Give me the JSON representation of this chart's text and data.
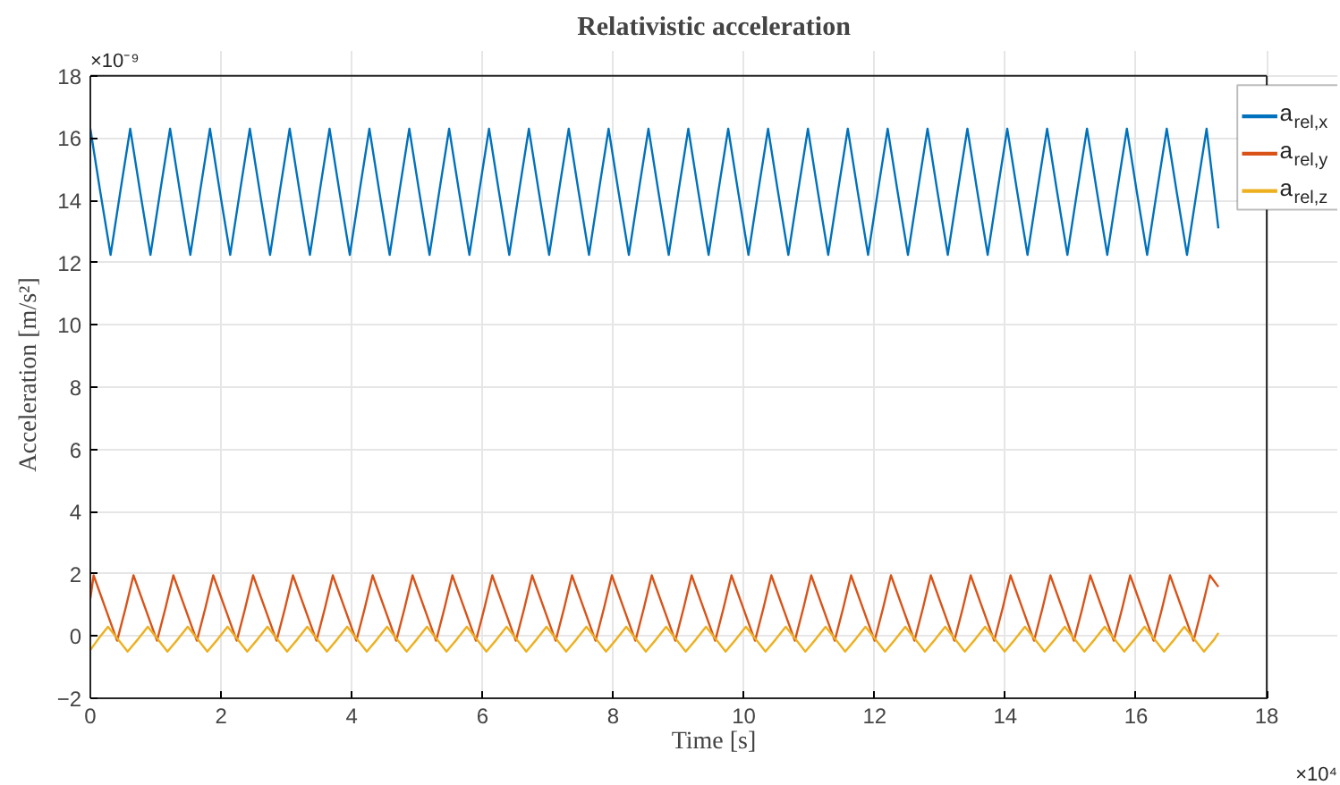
{
  "chart_data": {
    "type": "line",
    "title": "Relativistic acceleration",
    "xlabel": "Time [s]",
    "ylabel": "Acceleration [m/s²]",
    "annotations": [
      "×10⁻⁹",
      "×10⁴"
    ],
    "xlim": [
      0,
      18
    ],
    "xticks": [
      0,
      2,
      4,
      6,
      8,
      10,
      12,
      14,
      16,
      18
    ],
    "ylim": [
      -2,
      18
    ],
    "yticks": [
      -2,
      0,
      2,
      4,
      6,
      8,
      10,
      12,
      14,
      16,
      18
    ],
    "grid": true,
    "legend": "top right",
    "marker": "none",
    "line_style": "solid",
    "series": [
      {
        "name": "a$_{rel,x}$",
        "color": "#0072bd",
        "x": [
          0,
          0.15,
          0.31,
          0.46,
          0.61,
          0.76,
          0.92,
          1.07,
          1.22,
          1.37,
          1.53,
          1.68,
          1.83,
          1.98,
          2.14,
          2.29,
          2.44,
          2.59,
          2.75,
          2.9,
          3.05,
          3.2,
          3.36,
          3.51,
          3.66,
          3.81,
          3.97,
          4.12,
          4.27,
          4.42,
          4.58,
          4.73,
          4.88,
          5.03,
          5.19,
          5.34,
          5.49,
          5.64,
          5.8,
          5.95,
          6.1,
          6.25,
          6.41,
          6.56,
          6.71,
          6.86,
          7.02,
          7.17,
          7.32,
          7.47,
          7.63,
          7.78,
          7.93,
          8.08,
          8.24,
          8.39,
          8.54,
          8.69,
          8.85,
          9.0,
          9.15,
          9.3,
          9.46,
          9.61,
          9.76,
          9.91,
          10.07,
          10.22,
          10.37,
          10.52,
          10.68,
          10.83,
          10.98,
          11.13,
          11.29,
          11.44,
          11.59,
          11.74,
          11.9,
          12.05,
          12.2,
          12.35,
          12.51,
          12.66,
          12.81,
          12.96,
          13.12,
          13.27,
          13.42,
          13.57,
          13.73,
          13.88,
          14.03,
          14.18,
          14.34,
          14.49,
          14.64,
          14.79,
          14.95,
          15.1,
          15.25,
          15.4,
          15.56,
          15.71,
          15.86,
          16.01,
          16.17,
          16.32,
          16.47,
          16.62,
          16.78,
          16.93,
          17.08,
          17.26
        ],
        "values": [
          16.3,
          14.3,
          12.25,
          14.3,
          16.3,
          14.3,
          12.25,
          14.3,
          16.3,
          14.3,
          12.25,
          14.3,
          16.3,
          14.3,
          12.25,
          14.3,
          16.3,
          14.3,
          12.25,
          14.3,
          16.3,
          14.3,
          12.25,
          14.3,
          16.3,
          14.3,
          12.25,
          14.3,
          16.3,
          14.3,
          12.25,
          14.3,
          16.3,
          14.3,
          12.25,
          14.3,
          16.3,
          14.3,
          12.25,
          14.3,
          16.3,
          14.3,
          12.25,
          14.3,
          16.3,
          14.3,
          12.25,
          14.3,
          16.3,
          14.3,
          12.25,
          14.3,
          16.3,
          14.3,
          12.25,
          14.3,
          16.3,
          14.3,
          12.25,
          14.3,
          16.3,
          14.3,
          12.25,
          14.3,
          16.3,
          14.3,
          12.25,
          14.3,
          16.3,
          14.3,
          12.25,
          14.3,
          16.3,
          14.3,
          12.25,
          14.3,
          16.3,
          14.3,
          12.25,
          14.3,
          16.3,
          14.3,
          12.25,
          14.3,
          16.3,
          14.3,
          12.25,
          14.3,
          16.3,
          14.3,
          12.25,
          14.3,
          16.3,
          14.3,
          12.25,
          14.3,
          16.3,
          14.3,
          12.25,
          14.3,
          16.3,
          14.3,
          12.25,
          14.3,
          16.3,
          14.3,
          12.25,
          14.3,
          16.3,
          14.3,
          12.25,
          14.3,
          16.3,
          13.1
        ]
      },
      {
        "name": "a$_{rel,y}$",
        "color": "#d95319",
        "x": [
          0,
          0.05,
          0.23,
          0.41,
          0.54,
          0.66,
          0.84,
          1.02,
          1.15,
          1.27,
          1.45,
          1.63,
          1.76,
          1.88,
          2.06,
          2.24,
          2.37,
          2.49,
          2.67,
          2.85,
          2.98,
          3.1,
          3.28,
          3.46,
          3.59,
          3.71,
          3.89,
          4.07,
          4.2,
          4.32,
          4.5,
          4.68,
          4.81,
          4.93,
          5.11,
          5.29,
          5.42,
          5.54,
          5.72,
          5.9,
          6.03,
          6.15,
          6.33,
          6.51,
          6.64,
          6.76,
          6.94,
          7.12,
          7.25,
          7.37,
          7.55,
          7.73,
          7.86,
          7.98,
          8.16,
          8.34,
          8.47,
          8.59,
          8.77,
          8.95,
          9.08,
          9.2,
          9.38,
          9.56,
          9.69,
          9.81,
          9.99,
          10.17,
          10.3,
          10.42,
          10.6,
          10.78,
          10.91,
          11.03,
          11.21,
          11.39,
          11.52,
          11.64,
          11.82,
          12.0,
          12.13,
          12.25,
          12.43,
          12.61,
          12.74,
          12.86,
          13.04,
          13.22,
          13.35,
          13.47,
          13.65,
          13.83,
          13.96,
          14.08,
          14.26,
          14.44,
          14.57,
          14.69,
          14.87,
          15.05,
          15.18,
          15.3,
          15.48,
          15.66,
          15.79,
          15.91,
          16.09,
          16.27,
          16.4,
          16.52,
          16.7,
          16.88,
          17.01,
          17.13,
          17.26
        ],
        "values": [
          1.2,
          1.95,
          0.9,
          -0.15,
          0.9,
          1.95,
          0.9,
          -0.15,
          0.9,
          1.95,
          0.9,
          -0.15,
          0.9,
          1.95,
          0.9,
          -0.15,
          0.9,
          1.95,
          0.9,
          -0.15,
          0.9,
          1.95,
          0.9,
          -0.15,
          0.9,
          1.95,
          0.9,
          -0.15,
          0.9,
          1.95,
          0.9,
          -0.15,
          0.9,
          1.95,
          0.9,
          -0.15,
          0.9,
          1.95,
          0.9,
          -0.15,
          0.9,
          1.95,
          0.9,
          -0.15,
          0.9,
          1.95,
          0.9,
          -0.15,
          0.9,
          1.95,
          0.9,
          -0.15,
          0.9,
          1.95,
          0.9,
          -0.15,
          0.9,
          1.95,
          0.9,
          -0.15,
          0.9,
          1.95,
          0.9,
          -0.15,
          0.9,
          1.95,
          0.9,
          -0.15,
          0.9,
          1.95,
          0.9,
          -0.15,
          0.9,
          1.95,
          0.9,
          -0.15,
          0.9,
          1.95,
          0.9,
          -0.15,
          0.9,
          1.95,
          0.9,
          -0.15,
          0.9,
          1.95,
          0.9,
          -0.15,
          0.9,
          1.95,
          0.9,
          -0.15,
          0.9,
          1.95,
          0.9,
          -0.15,
          0.9,
          1.95,
          0.9,
          -0.15,
          0.9,
          1.95,
          0.9,
          -0.15,
          0.9,
          1.95,
          0.9,
          -0.15,
          0.9,
          1.95,
          0.9,
          -0.15,
          0.9,
          1.95,
          1.58
        ]
      },
      {
        "name": "a$_{rel,z}$",
        "color": "#edb120",
        "x": [
          0,
          0.12,
          0.27,
          0.42,
          0.57,
          0.73,
          0.88,
          1.03,
          1.18,
          1.34,
          1.49,
          1.64,
          1.79,
          1.95,
          2.1,
          2.25,
          2.4,
          2.56,
          2.71,
          2.86,
          3.01,
          3.17,
          3.32,
          3.47,
          3.62,
          3.78,
          3.93,
          4.08,
          4.23,
          4.39,
          4.54,
          4.69,
          4.84,
          5.0,
          5.15,
          5.3,
          5.45,
          5.61,
          5.76,
          5.91,
          6.06,
          6.22,
          6.37,
          6.52,
          6.67,
          6.83,
          6.98,
          7.13,
          7.28,
          7.44,
          7.59,
          7.74,
          7.89,
          8.05,
          8.2,
          8.35,
          8.5,
          8.66,
          8.81,
          8.96,
          9.11,
          9.27,
          9.42,
          9.57,
          9.72,
          9.88,
          10.03,
          10.18,
          10.33,
          10.49,
          10.64,
          10.79,
          10.94,
          11.1,
          11.25,
          11.4,
          11.55,
          11.71,
          11.86,
          12.01,
          12.16,
          12.32,
          12.47,
          12.62,
          12.77,
          12.93,
          13.08,
          13.23,
          13.38,
          13.54,
          13.69,
          13.84,
          13.99,
          14.15,
          14.3,
          14.45,
          14.6,
          14.76,
          14.91,
          15.06,
          15.21,
          15.37,
          15.52,
          15.67,
          15.82,
          15.98,
          16.13,
          16.28,
          16.43,
          16.59,
          16.74,
          16.89,
          17.04,
          17.2,
          17.26
        ],
        "values": [
          -0.45,
          -0.1,
          0.3,
          -0.1,
          -0.5,
          -0.1,
          0.3,
          -0.1,
          -0.5,
          -0.1,
          0.3,
          -0.1,
          -0.5,
          -0.1,
          0.3,
          -0.1,
          -0.5,
          -0.1,
          0.3,
          -0.1,
          -0.5,
          -0.1,
          0.3,
          -0.1,
          -0.5,
          -0.1,
          0.3,
          -0.1,
          -0.5,
          -0.1,
          0.3,
          -0.1,
          -0.5,
          -0.1,
          0.3,
          -0.1,
          -0.5,
          -0.1,
          0.3,
          -0.1,
          -0.5,
          -0.1,
          0.3,
          -0.1,
          -0.5,
          -0.1,
          0.3,
          -0.1,
          -0.5,
          -0.1,
          0.3,
          -0.1,
          -0.5,
          -0.1,
          0.3,
          -0.1,
          -0.5,
          -0.1,
          0.3,
          -0.1,
          -0.5,
          -0.1,
          0.3,
          -0.1,
          -0.5,
          -0.1,
          0.3,
          -0.1,
          -0.5,
          -0.1,
          0.3,
          -0.1,
          -0.5,
          -0.1,
          0.3,
          -0.1,
          -0.5,
          -0.1,
          0.3,
          -0.1,
          -0.5,
          -0.1,
          0.3,
          -0.1,
          -0.5,
          -0.1,
          0.3,
          -0.1,
          -0.5,
          -0.1,
          0.3,
          -0.1,
          -0.5,
          -0.1,
          0.3,
          -0.1,
          -0.5,
          -0.1,
          0.3,
          -0.1,
          -0.5,
          -0.1,
          0.3,
          -0.1,
          -0.5,
          -0.1,
          0.3,
          -0.1,
          -0.5,
          -0.1,
          0.3,
          -0.1,
          -0.5,
          -0.1,
          0.1
        ]
      }
    ]
  }
}
